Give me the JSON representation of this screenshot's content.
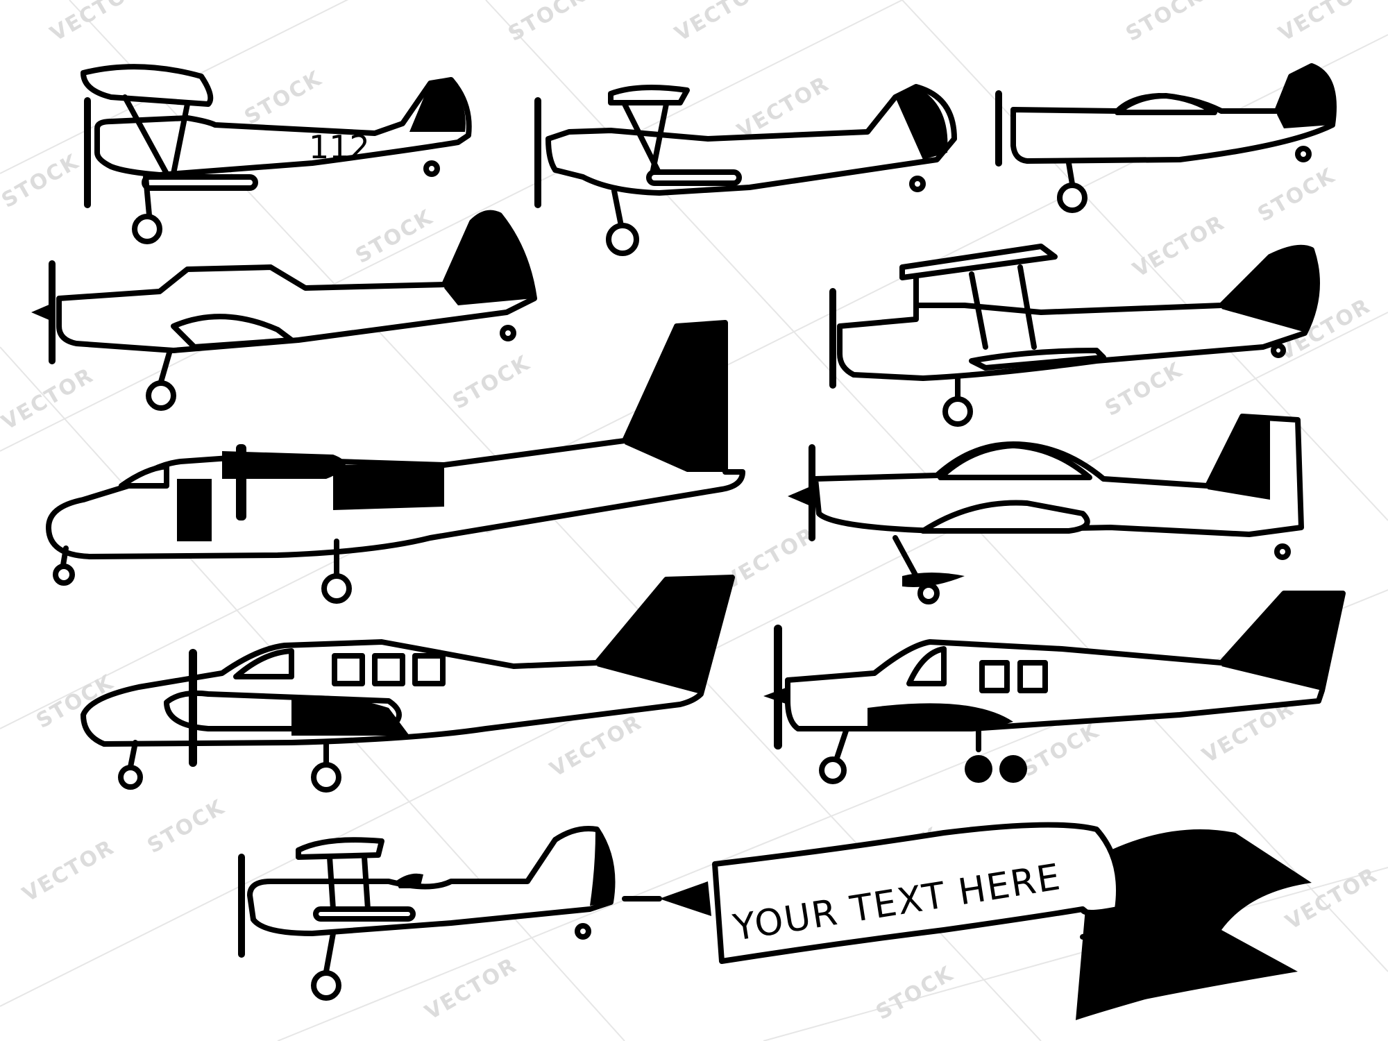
{
  "watermark": {
    "words": [
      "VECTOR",
      "STOCK"
    ],
    "color": "#dcdcdc"
  },
  "ink_color": "#000000",
  "planes": [
    {
      "name": "biplane-112",
      "number": "112"
    },
    {
      "name": "biplane-long"
    },
    {
      "name": "fighter-small"
    },
    {
      "name": "trainer"
    },
    {
      "name": "biplane-high-wing"
    },
    {
      "name": "twin-engine-high-wing"
    },
    {
      "name": "sport-monoplane"
    },
    {
      "name": "twin-prop-cabin"
    },
    {
      "name": "single-prop-cabin"
    },
    {
      "name": "biplane-towing-banner"
    }
  ],
  "banner": {
    "text": "YOUR TEXT HERE"
  }
}
